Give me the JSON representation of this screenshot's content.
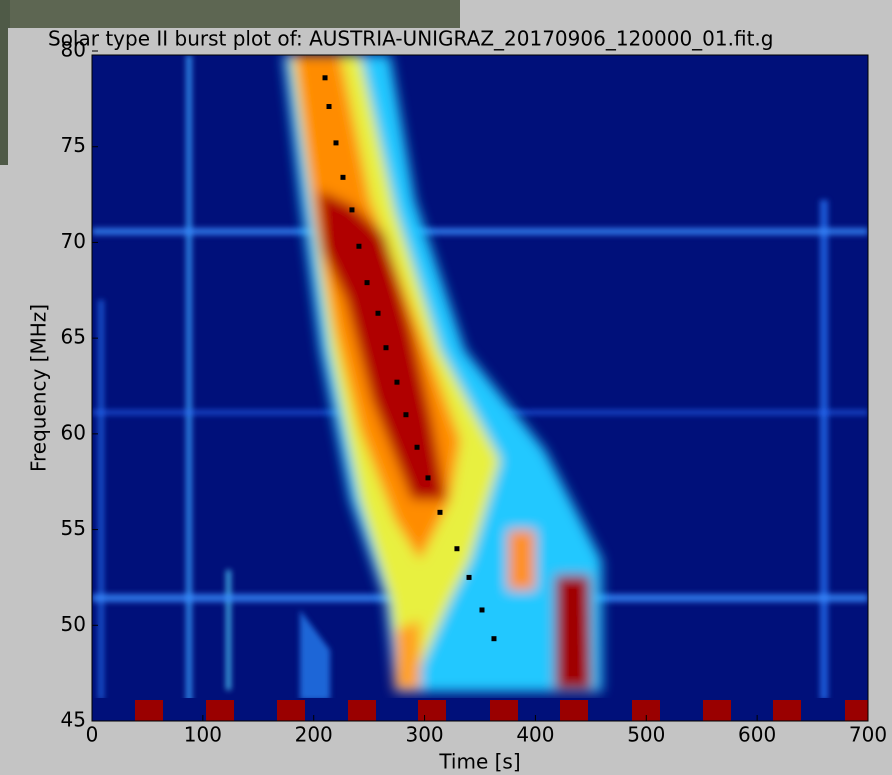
{
  "chart_data": {
    "type": "scatter",
    "title": "Solar type II burst plot of: AUSTRIA-UNIGRAZ_20170906_120000_01.fit.g",
    "xlabel": "Time [s]",
    "ylabel": "Frequency [MHz]",
    "x": [
      210.2,
      213.8,
      220.1,
      226.4,
      234.5,
      240.8,
      248.1,
      258.0,
      265.2,
      275.1,
      283.2,
      293.2,
      303.1,
      313.9,
      329.2,
      340.1,
      351.8,
      362.6
    ],
    "values": [
      78.6,
      77.1,
      75.2,
      73.4,
      71.7,
      69.8,
      67.9,
      66.3,
      64.5,
      62.7,
      61.0,
      59.3,
      57.7,
      55.9,
      54.0,
      52.5,
      50.8,
      49.3
    ],
    "color": "#000000",
    "xlim": [
      0,
      700
    ],
    "xticks": [
      0,
      100,
      200,
      300,
      400,
      500,
      600,
      700
    ],
    "ylim": [
      45,
      80
    ],
    "yticks": [
      45,
      50,
      55,
      60,
      65,
      70,
      75,
      80
    ]
  }
}
